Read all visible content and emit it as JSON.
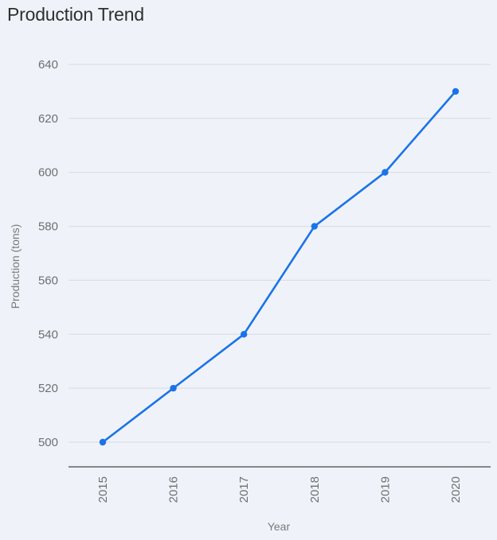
{
  "chart_data": {
    "type": "line",
    "title": "Production Trend",
    "xlabel": "Year",
    "ylabel": "Production (tons)",
    "x": [
      "2015",
      "2016",
      "2017",
      "2018",
      "2019",
      "2020"
    ],
    "y_ticks": [
      "500",
      "520",
      "540",
      "560",
      "580",
      "600",
      "620",
      "640"
    ],
    "ylim": [
      500,
      640
    ],
    "grid": true,
    "series": [
      {
        "values": [
          500,
          520,
          540,
          580,
          600,
          630
        ],
        "color": "#1a73e8"
      }
    ],
    "colors": {
      "background": "#eff3f9",
      "gridline": "#d7dbe0",
      "axis": "#444444"
    }
  }
}
